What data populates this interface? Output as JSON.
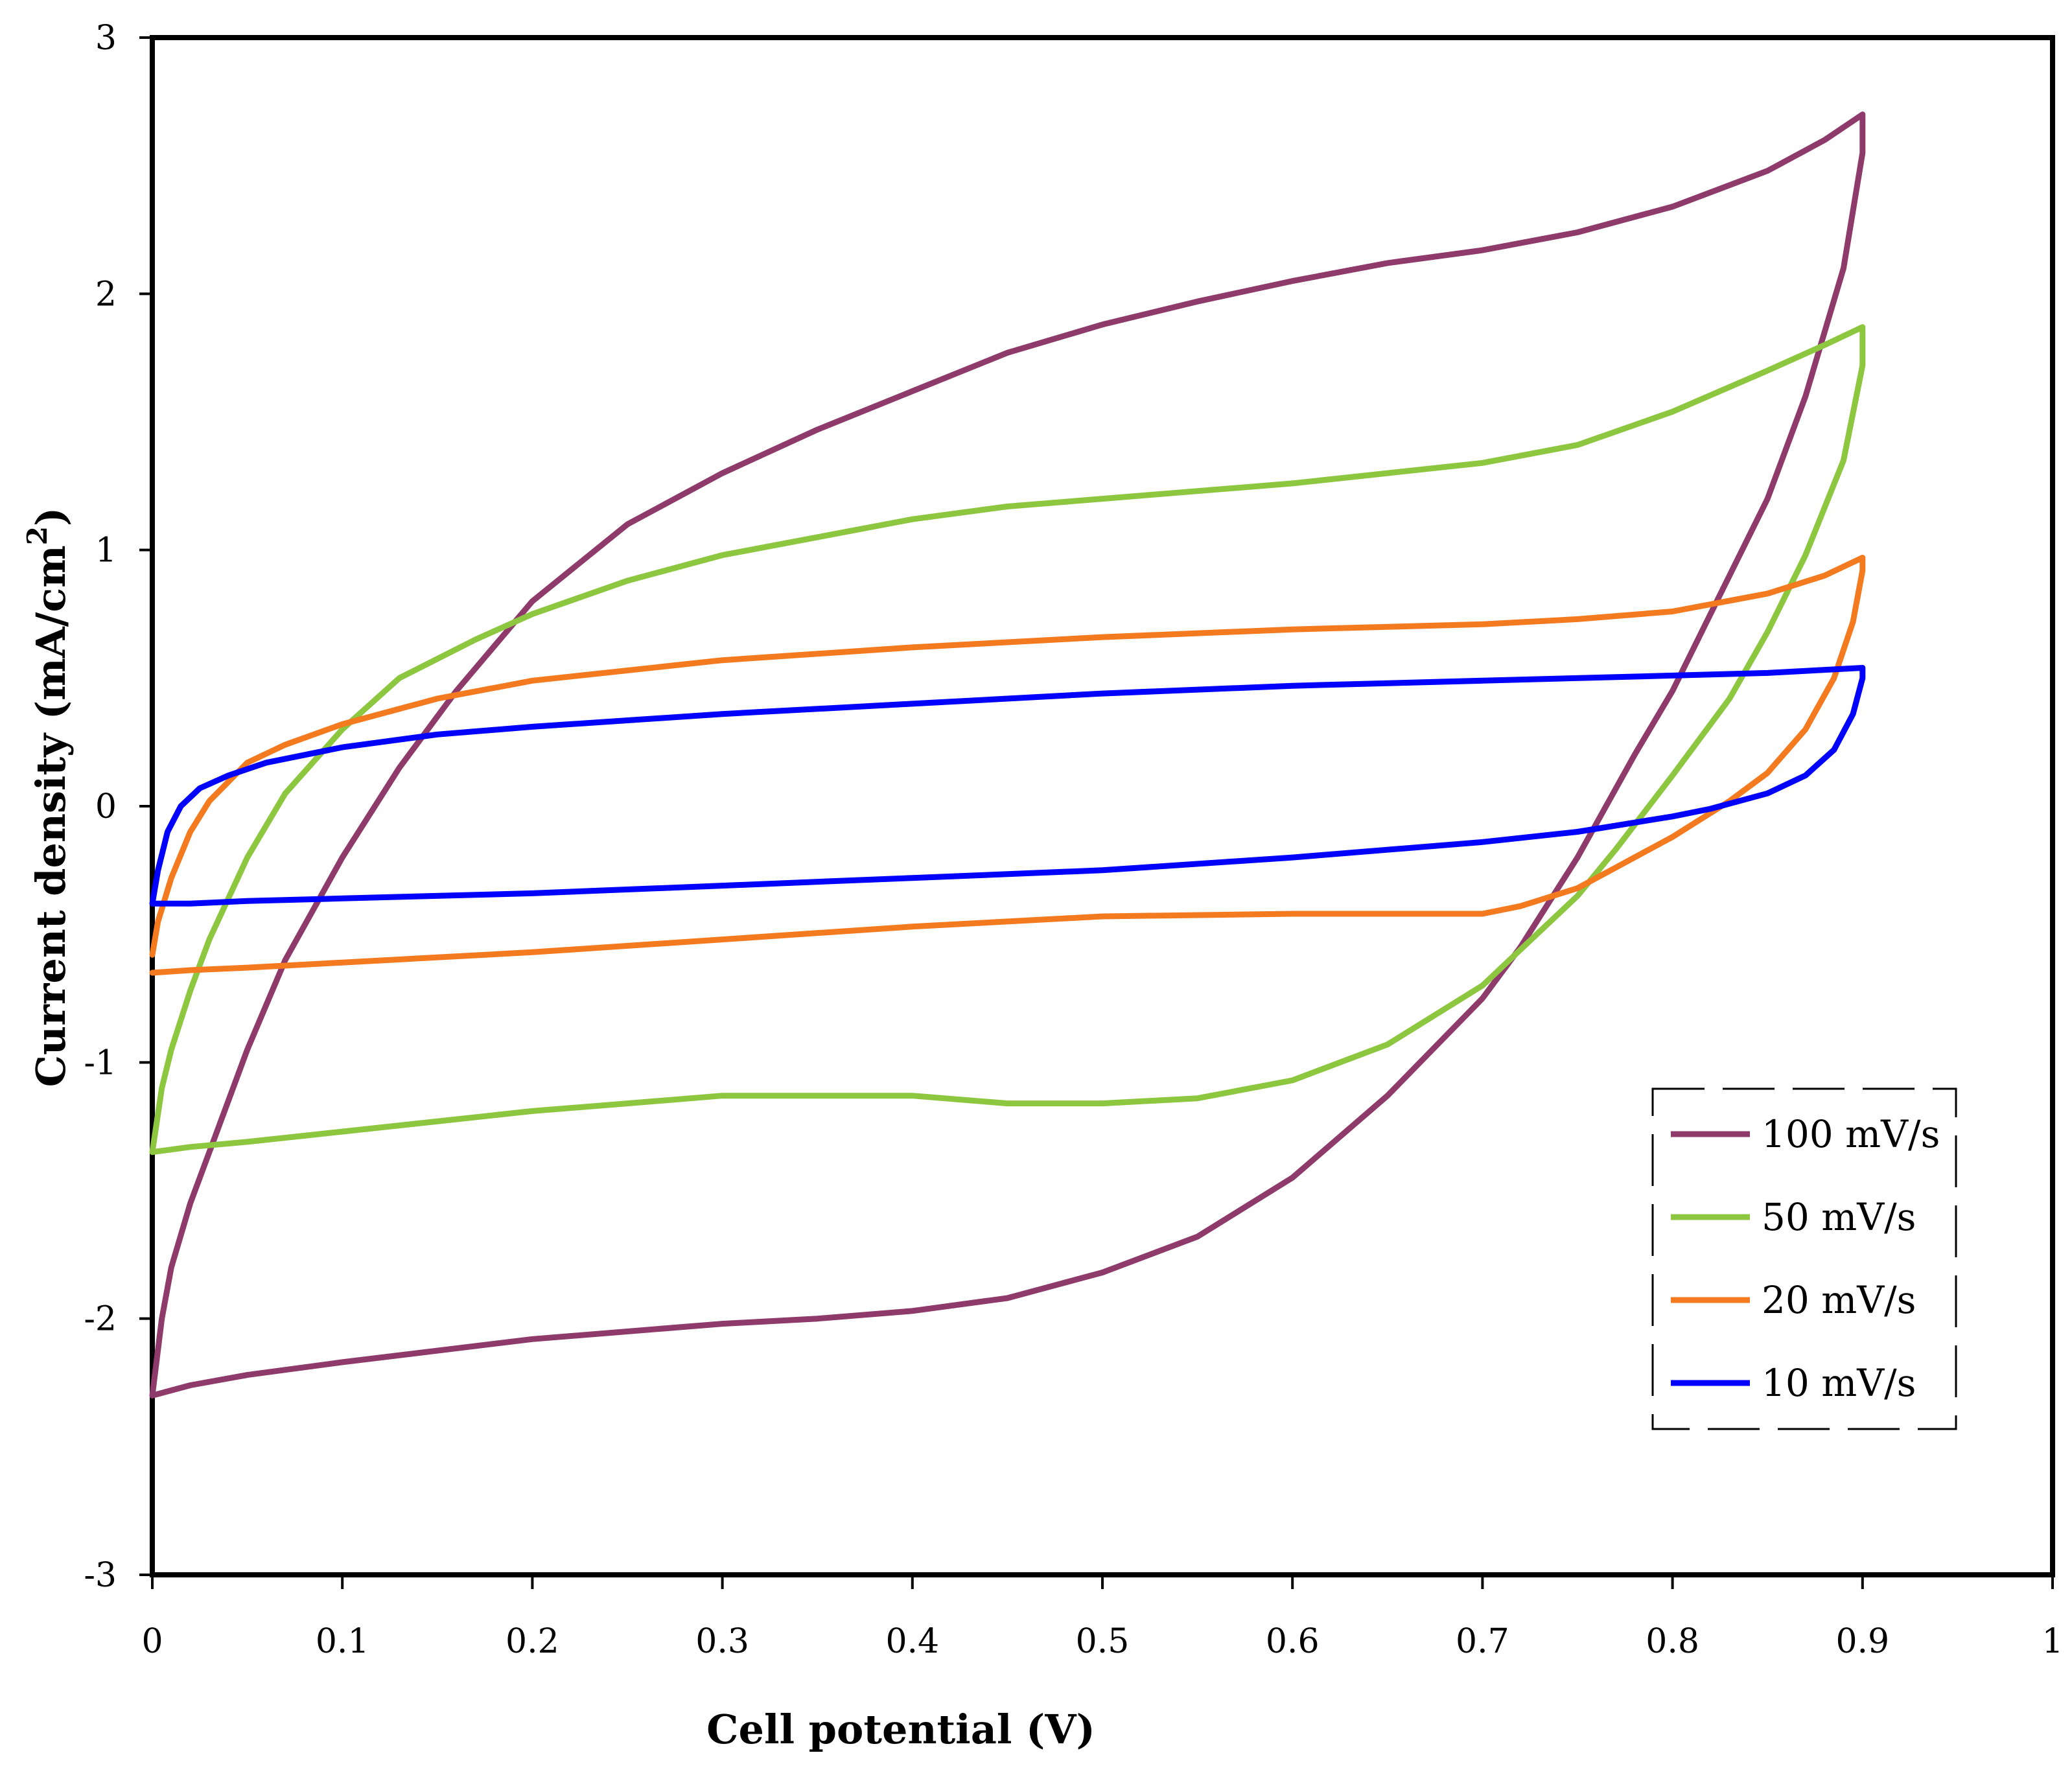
{
  "chart_data": {
    "type": "line",
    "title": "",
    "xlabel": "Cell potential (V)",
    "ylabel_main": "Current density (mA/cm",
    "ylabel_sup": "2",
    "ylabel_close": ")",
    "xlim": [
      0,
      1
    ],
    "ylim": [
      -3,
      3
    ],
    "xticks": [
      0,
      0.1,
      0.2,
      0.3,
      0.4,
      0.5,
      0.6,
      0.7,
      0.8,
      0.9,
      1
    ],
    "xtick_labels": [
      "0",
      "0.1",
      "0.2",
      "0.3",
      "0.4",
      "0.5",
      "0.6",
      "0.7",
      "0.8",
      "0.9",
      "1"
    ],
    "yticks": [
      -3,
      -2,
      -1,
      0,
      1,
      2,
      3
    ],
    "ytick_labels": [
      "-3",
      "-2",
      "-1",
      "0",
      "1",
      "2",
      "3"
    ],
    "grid": false,
    "legend_position": "right-lower",
    "series": [
      {
        "name": "100 mV/s",
        "color": "#8E3A6A",
        "x": [
          0,
          0.005,
          0.01,
          0.02,
          0.03,
          0.05,
          0.07,
          0.1,
          0.13,
          0.16,
          0.2,
          0.25,
          0.3,
          0.35,
          0.4,
          0.45,
          0.5,
          0.55,
          0.6,
          0.65,
          0.7,
          0.75,
          0.8,
          0.85,
          0.88,
          0.9,
          0.9,
          0.89,
          0.87,
          0.85,
          0.82,
          0.8,
          0.78,
          0.75,
          0.72,
          0.7,
          0.65,
          0.6,
          0.55,
          0.5,
          0.45,
          0.4,
          0.35,
          0.3,
          0.2,
          0.1,
          0.05,
          0.02,
          0
        ],
        "y": [
          -2.3,
          -2.0,
          -1.8,
          -1.55,
          -1.35,
          -0.95,
          -0.6,
          -0.2,
          0.15,
          0.45,
          0.8,
          1.1,
          1.3,
          1.47,
          1.62,
          1.77,
          1.88,
          1.97,
          2.05,
          2.12,
          2.17,
          2.24,
          2.34,
          2.48,
          2.6,
          2.7,
          2.55,
          2.1,
          1.6,
          1.2,
          0.75,
          0.45,
          0.2,
          -0.2,
          -0.55,
          -0.75,
          -1.13,
          -1.45,
          -1.68,
          -1.82,
          -1.92,
          -1.97,
          -2.0,
          -2.02,
          -2.08,
          -2.17,
          -2.22,
          -2.26,
          -2.3
        ]
      },
      {
        "name": "50 mV/s",
        "color": "#8DC63F",
        "x": [
          0,
          0.005,
          0.01,
          0.02,
          0.03,
          0.05,
          0.07,
          0.1,
          0.13,
          0.17,
          0.2,
          0.25,
          0.3,
          0.35,
          0.4,
          0.45,
          0.5,
          0.55,
          0.6,
          0.65,
          0.7,
          0.75,
          0.8,
          0.85,
          0.88,
          0.9,
          0.9,
          0.89,
          0.87,
          0.85,
          0.83,
          0.8,
          0.77,
          0.75,
          0.72,
          0.7,
          0.65,
          0.6,
          0.55,
          0.5,
          0.45,
          0.4,
          0.35,
          0.3,
          0.25,
          0.2,
          0.1,
          0.05,
          0.02,
          0
        ],
        "y": [
          -1.35,
          -1.1,
          -0.95,
          -0.72,
          -0.52,
          -0.2,
          0.05,
          0.3,
          0.5,
          0.65,
          0.75,
          0.88,
          0.98,
          1.05,
          1.12,
          1.17,
          1.2,
          1.23,
          1.26,
          1.3,
          1.34,
          1.41,
          1.54,
          1.7,
          1.8,
          1.87,
          1.72,
          1.35,
          0.98,
          0.68,
          0.42,
          0.12,
          -0.17,
          -0.35,
          -0.56,
          -0.7,
          -0.93,
          -1.07,
          -1.14,
          -1.16,
          -1.16,
          -1.13,
          -1.13,
          -1.13,
          -1.16,
          -1.19,
          -1.27,
          -1.31,
          -1.33,
          -1.35
        ]
      },
      {
        "name": "20 mV/s",
        "color": "#F47A20",
        "x": [
          0,
          0.003,
          0.01,
          0.02,
          0.03,
          0.05,
          0.07,
          0.1,
          0.15,
          0.2,
          0.3,
          0.4,
          0.5,
          0.6,
          0.7,
          0.75,
          0.8,
          0.85,
          0.88,
          0.9,
          0.9,
          0.895,
          0.885,
          0.87,
          0.85,
          0.83,
          0.8,
          0.77,
          0.75,
          0.72,
          0.7,
          0.65,
          0.6,
          0.5,
          0.4,
          0.3,
          0.2,
          0.1,
          0.05,
          0.02,
          0
        ],
        "y": [
          -0.58,
          -0.45,
          -0.28,
          -0.1,
          0.02,
          0.17,
          0.24,
          0.32,
          0.42,
          0.49,
          0.57,
          0.62,
          0.66,
          0.69,
          0.71,
          0.73,
          0.76,
          0.83,
          0.9,
          0.97,
          0.92,
          0.72,
          0.5,
          0.3,
          0.13,
          0.02,
          -0.12,
          -0.24,
          -0.32,
          -0.39,
          -0.42,
          -0.42,
          -0.42,
          -0.43,
          -0.47,
          -0.52,
          -0.57,
          -0.61,
          -0.63,
          -0.64,
          -0.65
        ]
      },
      {
        "name": "10 mV/s",
        "color": "#0000FF",
        "x": [
          0,
          0.003,
          0.008,
          0.015,
          0.025,
          0.04,
          0.06,
          0.1,
          0.15,
          0.2,
          0.3,
          0.4,
          0.5,
          0.6,
          0.7,
          0.8,
          0.85,
          0.9,
          0.9,
          0.895,
          0.885,
          0.87,
          0.85,
          0.82,
          0.8,
          0.75,
          0.7,
          0.6,
          0.5,
          0.4,
          0.3,
          0.2,
          0.1,
          0.05,
          0.02,
          0
        ],
        "y": [
          -0.38,
          -0.25,
          -0.1,
          0.0,
          0.07,
          0.12,
          0.17,
          0.23,
          0.28,
          0.31,
          0.36,
          0.4,
          0.44,
          0.47,
          0.49,
          0.51,
          0.52,
          0.54,
          0.5,
          0.36,
          0.22,
          0.12,
          0.05,
          -0.01,
          -0.04,
          -0.1,
          -0.14,
          -0.2,
          -0.25,
          -0.28,
          -0.31,
          -0.34,
          -0.36,
          -0.37,
          -0.38,
          -0.38
        ]
      }
    ]
  }
}
